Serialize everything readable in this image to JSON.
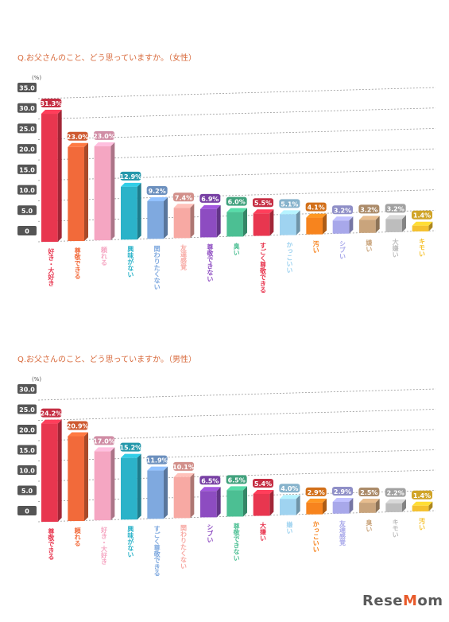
{
  "chart_data": [
    {
      "type": "bar",
      "title": "Q.お父さんのこと、どう思っていますか。（女性）",
      "ylabel": "(%)",
      "ylim": [
        0,
        35
      ],
      "yticks": [
        "35.0",
        "30.0",
        "25.0",
        "20.0",
        "15.0",
        "10.0",
        "5.0",
        "0"
      ],
      "grid": true,
      "categories": [
        "好き・大好き",
        "尊敬できる",
        "頼れる",
        "興味がない",
        "関わりたくない",
        "友達感覚",
        "尊敬できない",
        "臭い",
        "すごく尊敬できる",
        "かっこいい",
        "汚い",
        "シブい",
        "嫌い",
        "大嫌い",
        "キモい"
      ],
      "values": [
        31.3,
        23.0,
        23.0,
        12.9,
        9.2,
        7.4,
        6.9,
        6.0,
        5.5,
        5.1,
        4.1,
        3.2,
        3.2,
        3.2,
        1.4
      ],
      "value_labels": [
        "31.3%",
        "23.0%",
        "23.0%",
        "12.9%",
        "9.2%",
        "7.4%",
        "6.9%",
        "6.0%",
        "5.5%",
        "5.1%",
        "4.1%",
        "3.2%",
        "3.2%",
        "3.2%",
        "1.4%"
      ],
      "colors": [
        "#e8364f",
        "#f26a3a",
        "#f5a6c2",
        "#2bb3c9",
        "#7fa9df",
        "#f7a9a3",
        "#8d4cc1",
        "#4cbf93",
        "#e8364f",
        "#9fd3f0",
        "#f7841e",
        "#a8a8ea",
        "#c9a47c",
        "#bdbdbd",
        "#f5c12e"
      ]
    },
    {
      "type": "bar",
      "title": "Q.お父さんのこと、どう思っていますか。（男性）",
      "ylabel": "(%)",
      "ylim": [
        0,
        30
      ],
      "yticks": [
        "30.0",
        "25.0",
        "20.0",
        "15.0",
        "10.0",
        "5.0",
        "0"
      ],
      "grid": true,
      "categories": [
        "尊敬できる",
        "頼れる",
        "好き・大好き",
        "興味がない",
        "すごく尊敬できる",
        "関わりたくない",
        "シブい",
        "尊敬できない",
        "大嫌い",
        "嫌い",
        "かっこいい",
        "友達感覚",
        "臭い",
        "キモい",
        "汚い"
      ],
      "values": [
        24.2,
        20.9,
        17.0,
        15.2,
        11.9,
        10.1,
        6.5,
        6.5,
        5.4,
        4.0,
        2.9,
        2.9,
        2.5,
        2.2,
        1.4
      ],
      "value_labels": [
        "24.2%",
        "20.9%",
        "17.0%",
        "15.2%",
        "11.9%",
        "10.1%",
        "6.5%",
        "6.5%",
        "5.4%",
        "4.0%",
        "2.9%",
        "2.9%",
        "2.5%",
        "2.2%",
        "1.4%"
      ],
      "colors": [
        "#e8364f",
        "#f26a3a",
        "#f5a6c2",
        "#2bb3c9",
        "#7fa9df",
        "#f7a9a3",
        "#8d4cc1",
        "#4cbf93",
        "#e8364f",
        "#9fd3f0",
        "#f7841e",
        "#a8a8ea",
        "#c9a47c",
        "#bdbdbd",
        "#f5c12e"
      ]
    }
  ],
  "watermark": {
    "text": "ReseMom"
  }
}
